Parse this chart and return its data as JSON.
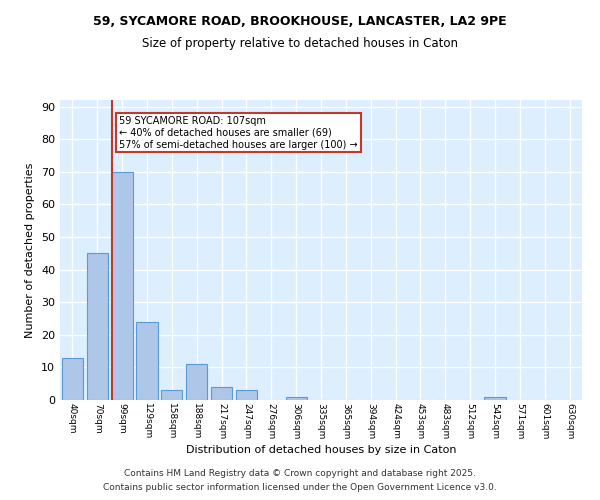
{
  "title_line1": "59, SYCAMORE ROAD, BROOKHOUSE, LANCASTER, LA2 9PE",
  "title_line2": "Size of property relative to detached houses in Caton",
  "xlabel": "Distribution of detached houses by size in Caton",
  "ylabel": "Number of detached properties",
  "categories": [
    "40sqm",
    "70sqm",
    "99sqm",
    "129sqm",
    "158sqm",
    "188sqm",
    "217sqm",
    "247sqm",
    "276sqm",
    "306sqm",
    "335sqm",
    "365sqm",
    "394sqm",
    "424sqm",
    "453sqm",
    "483sqm",
    "512sqm",
    "542sqm",
    "571sqm",
    "601sqm",
    "630sqm"
  ],
  "values": [
    13,
    45,
    70,
    24,
    3,
    11,
    4,
    3,
    0,
    1,
    0,
    0,
    0,
    0,
    0,
    0,
    0,
    1,
    0,
    0,
    0
  ],
  "bar_color": "#aec6e8",
  "bar_edge_color": "#5b9bd5",
  "red_line_color": "#c0392b",
  "annotation_text": "59 SYCAMORE ROAD: 107sqm\n← 40% of detached houses are smaller (69)\n57% of semi-detached houses are larger (100) →",
  "annotation_box_color": "#ffffff",
  "annotation_border_color": "#c0392b",
  "ylim": [
    0,
    92
  ],
  "yticks": [
    0,
    10,
    20,
    30,
    40,
    50,
    60,
    70,
    80,
    90
  ],
  "background_color": "#ddeeff",
  "grid_color": "#ffffff",
  "footnote1": "Contains HM Land Registry data © Crown copyright and database right 2025.",
  "footnote2": "Contains public sector information licensed under the Open Government Licence v3.0."
}
